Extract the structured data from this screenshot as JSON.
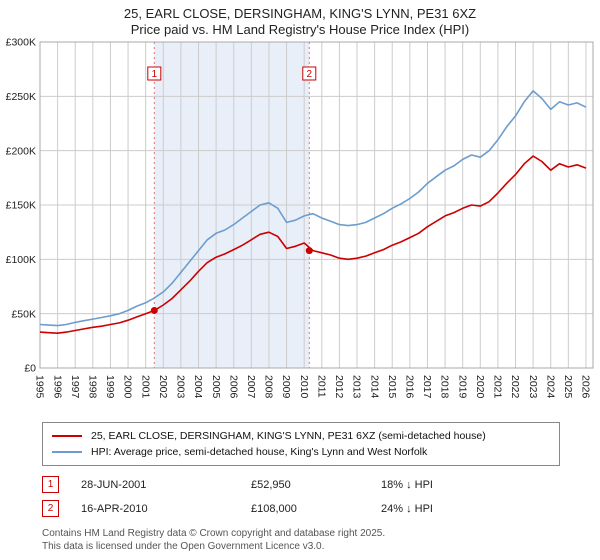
{
  "title": {
    "line1": "25, EARL CLOSE, DERSINGHAM, KING'S LYNN, PE31 6XZ",
    "line2": "Price paid vs. HM Land Registry's House Price Index (HPI)"
  },
  "chart_data": {
    "type": "line",
    "title": "Price paid vs. HM Land Registry's House Price Index (HPI)",
    "xlabel": "",
    "ylabel": "Price",
    "unit": "GBP thousands",
    "xlim": [
      1995,
      2026.4
    ],
    "ylim": [
      0,
      300
    ],
    "grid": true,
    "grid_color": "#cccccc",
    "border_color": "#aaaaaa",
    "band": {
      "from": 2001.49,
      "to": 2010.29,
      "color": "#e9eff9"
    },
    "ytick_values": [
      0,
      50,
      100,
      150,
      200,
      250,
      300
    ],
    "ytick_labels": [
      "£0",
      "£50K",
      "£100K",
      "£150K",
      "£200K",
      "£250K",
      "£300K"
    ],
    "xticks": [
      1995,
      1996,
      1997,
      1998,
      1999,
      2000,
      2001,
      2002,
      2003,
      2004,
      2005,
      2006,
      2007,
      2008,
      2009,
      2010,
      2011,
      2012,
      2013,
      2014,
      2015,
      2016,
      2017,
      2018,
      2019,
      2020,
      2021,
      2022,
      2023,
      2024,
      2025,
      2026
    ],
    "x": [
      1995,
      1995.5,
      1996,
      1996.5,
      1997,
      1997.5,
      1998,
      1998.5,
      1999,
      1999.5,
      2000,
      2000.5,
      2001,
      2001.5,
      2002,
      2002.5,
      2003,
      2003.5,
      2004,
      2004.5,
      2005,
      2005.5,
      2006,
      2006.5,
      2007,
      2007.5,
      2008,
      2008.5,
      2009,
      2009.5,
      2010,
      2010.5,
      2011,
      2011.5,
      2012,
      2012.5,
      2013,
      2013.5,
      2014,
      2014.5,
      2015,
      2015.5,
      2016,
      2016.5,
      2017,
      2017.5,
      2018,
      2018.5,
      2019,
      2019.5,
      2020,
      2020.5,
      2021,
      2021.5,
      2022,
      2022.5,
      2023,
      2023.5,
      2024,
      2024.5,
      2025,
      2025.5,
      2026
    ],
    "series": [
      {
        "name": "hpi",
        "label": "HPI: Average price, semi-detached house, King's Lynn and West Norfolk",
        "color": "#6d9dce",
        "values": [
          40,
          39.5,
          39,
          40,
          42,
          43.5,
          45,
          46.5,
          48,
          50,
          53,
          57,
          60,
          64.5,
          70,
          78,
          88,
          98,
          108,
          118,
          124,
          127,
          132,
          138,
          144,
          150,
          152,
          147,
          134,
          136,
          140,
          142,
          138,
          135,
          132,
          131,
          132,
          134,
          138,
          142,
          147,
          151,
          156,
          162,
          170,
          176,
          182,
          186,
          192,
          196,
          194,
          200,
          210,
          222,
          232,
          245,
          255,
          248,
          238,
          245,
          242,
          244,
          240
        ]
      },
      {
        "name": "price-paid",
        "label": "25, EARL CLOSE, DERSINGHAM, KING'S LYNN, PE31 6XZ (semi-detached house)",
        "color": "#cc0000",
        "values": [
          33,
          32.5,
          32,
          33,
          34.5,
          36,
          37.5,
          38.5,
          40,
          41.5,
          44,
          47,
          50,
          53,
          58,
          64,
          72,
          80,
          89,
          97,
          102,
          105,
          109,
          113,
          118,
          123,
          125,
          121,
          110,
          112,
          115,
          108,
          106,
          104,
          101,
          100,
          101,
          103,
          106,
          109,
          113,
          116,
          120,
          124,
          130,
          135,
          140,
          143,
          147,
          150,
          149,
          153,
          161,
          170,
          178,
          188,
          195,
          190,
          182,
          188,
          185,
          187,
          184
        ]
      }
    ],
    "sales": [
      {
        "num": "1",
        "x": 2001.49,
        "y": 52.95
      },
      {
        "num": "2",
        "x": 2010.29,
        "y": 108
      }
    ],
    "sale_line_color": "#e87070",
    "marker_color": "#cc0000",
    "legend_position": "bottom"
  },
  "legend": {
    "entries": [
      {
        "label": "25, EARL CLOSE, DERSINGHAM, KING'S LYNN, PE31 6XZ (semi-detached house)",
        "color": "#cc0000"
      },
      {
        "label": "HPI: Average price, semi-detached house, King's Lynn and West Norfolk",
        "color": "#6d9dce"
      }
    ]
  },
  "annotations": [
    {
      "num": "1",
      "date": "28-JUN-2001",
      "price": "£52,950",
      "hpi_diff": "18% ↓ HPI"
    },
    {
      "num": "2",
      "date": "16-APR-2010",
      "price": "£108,000",
      "hpi_diff": "24% ↓ HPI"
    }
  ],
  "footer": {
    "line1": "Contains HM Land Registry data © Crown copyright and database right 2025.",
    "line2": "This data is licensed under the Open Government Licence v3.0."
  }
}
